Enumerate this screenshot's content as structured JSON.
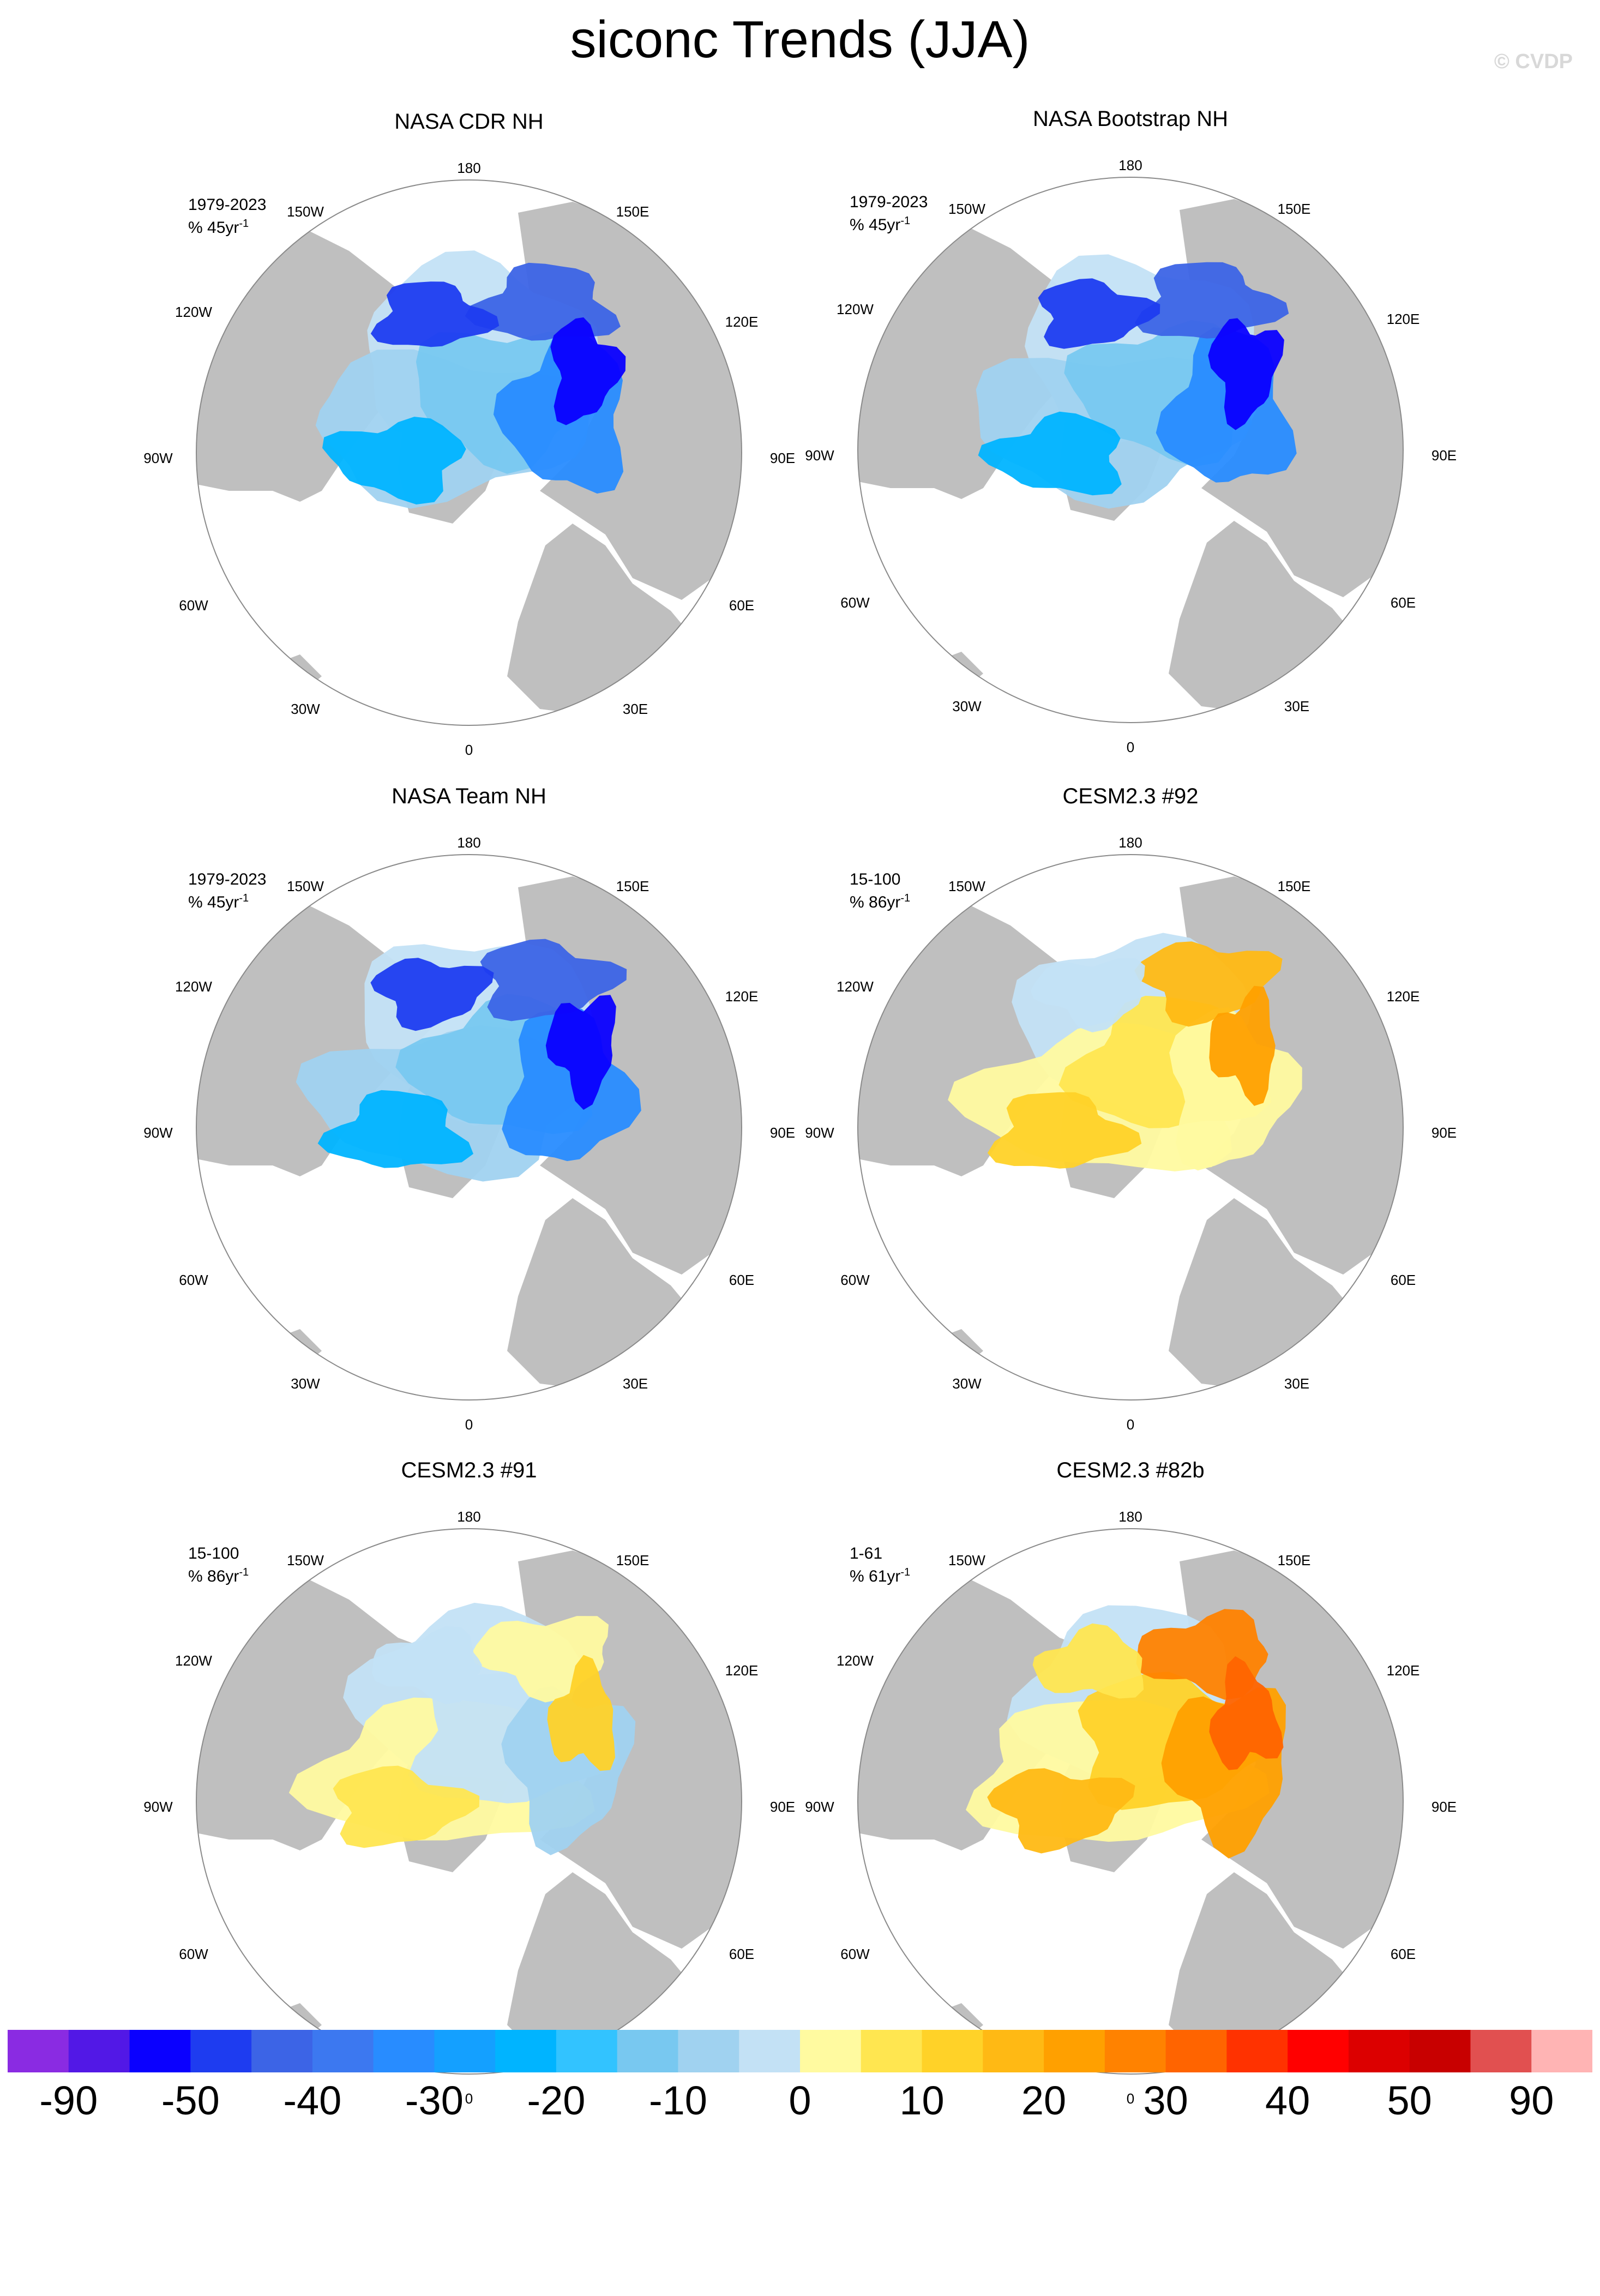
{
  "title": "siconc Trends (JJA)",
  "watermark": "© CVDP",
  "colors": {
    "land": "#bfbfbf",
    "ocean": "#ffffff",
    "outline": "#8a8a8a"
  },
  "chart_data": [
    {
      "type": "heatmap",
      "title": "NASA CDR NH",
      "period": "1979-2023",
      "units": "% 45yr",
      "units_exponent": "-1",
      "pattern": "negative"
    },
    {
      "type": "heatmap",
      "title": "NASA Bootstrap NH",
      "period": "1979-2023",
      "units": "% 45yr",
      "units_exponent": "-1",
      "pattern": "negative"
    },
    {
      "type": "heatmap",
      "title": "NASA Team NH",
      "period": "1979-2023",
      "units": "% 45yr",
      "units_exponent": "-1",
      "pattern": "negative"
    },
    {
      "type": "heatmap",
      "title": "CESM2.3 #92",
      "period": "15-100",
      "units": "% 86yr",
      "units_exponent": "-1",
      "pattern": "positive"
    },
    {
      "type": "heatmap",
      "title": "CESM2.3 #91",
      "period": "15-100",
      "units": "% 86yr",
      "units_exponent": "-1",
      "pattern": "mixed"
    },
    {
      "type": "heatmap",
      "title": "CESM2.3 #82b",
      "period": "1-61",
      "units": "% 61yr",
      "units_exponent": "-1",
      "pattern": "strong-positive"
    }
  ],
  "longitude_labels": [
    "180",
    "150E",
    "120E",
    "90E",
    "60E",
    "30E",
    "0",
    "30W",
    "60W",
    "90W",
    "120W",
    "150W"
  ],
  "colorbar": {
    "colors": [
      "#8a2be2",
      "#5218e6",
      "#0a00ff",
      "#1e3cf0",
      "#3c64e6",
      "#3c78f0",
      "#288cff",
      "#14a0ff",
      "#00b4ff",
      "#32c3ff",
      "#78c8f0",
      "#a0d2f0",
      "#c3e1f5",
      "#fffaa0",
      "#ffe650",
      "#ffd228",
      "#ffb914",
      "#ffa000",
      "#ff8200",
      "#ff6400",
      "#ff3200",
      "#ff0000",
      "#dc0000",
      "#c80000",
      "#e15050",
      "#ffb4b4"
    ],
    "labels": [
      "-90",
      "-50",
      "-40",
      "-30",
      "-20",
      "-10",
      "0",
      "10",
      "20",
      "30",
      "40",
      "50",
      "90"
    ]
  }
}
